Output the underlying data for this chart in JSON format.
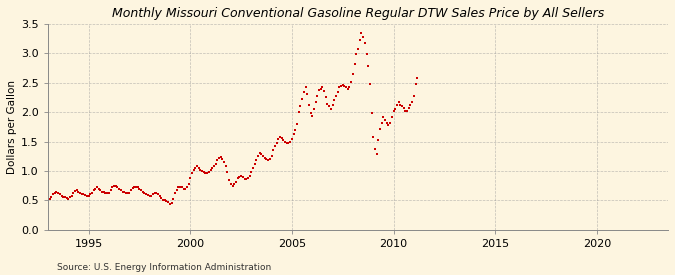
{
  "title": "Monthly Missouri Conventional Gasoline Regular DTW Sales Price by All Sellers",
  "ylabel": "Dollars per Gallon",
  "source": "Source: U.S. Energy Information Administration",
  "background_color": "#fdf5e0",
  "dot_color": "#cc0000",
  "grid_color": "#999999",
  "xlim": [
    1993.0,
    2023.5
  ],
  "ylim": [
    0.0,
    3.5
  ],
  "yticks": [
    0.0,
    0.5,
    1.0,
    1.5,
    2.0,
    2.5,
    3.0,
    3.5
  ],
  "xticks": [
    1995,
    2000,
    2005,
    2010,
    2015,
    2020
  ],
  "data": [
    [
      1993.08,
      0.52
    ],
    [
      1993.17,
      0.55
    ],
    [
      1993.25,
      0.6
    ],
    [
      1993.33,
      0.62
    ],
    [
      1993.42,
      0.65
    ],
    [
      1993.5,
      0.63
    ],
    [
      1993.58,
      0.6
    ],
    [
      1993.67,
      0.57
    ],
    [
      1993.75,
      0.56
    ],
    [
      1993.83,
      0.55
    ],
    [
      1993.92,
      0.54
    ],
    [
      1994.0,
      0.53
    ],
    [
      1994.08,
      0.55
    ],
    [
      1994.17,
      0.58
    ],
    [
      1994.25,
      0.63
    ],
    [
      1994.33,
      0.66
    ],
    [
      1994.42,
      0.67
    ],
    [
      1994.5,
      0.65
    ],
    [
      1994.58,
      0.63
    ],
    [
      1994.67,
      0.6
    ],
    [
      1994.75,
      0.6
    ],
    [
      1994.83,
      0.59
    ],
    [
      1994.92,
      0.58
    ],
    [
      1995.0,
      0.57
    ],
    [
      1995.08,
      0.6
    ],
    [
      1995.17,
      0.63
    ],
    [
      1995.25,
      0.68
    ],
    [
      1995.33,
      0.7
    ],
    [
      1995.42,
      0.72
    ],
    [
      1995.5,
      0.7
    ],
    [
      1995.58,
      0.68
    ],
    [
      1995.67,
      0.65
    ],
    [
      1995.75,
      0.64
    ],
    [
      1995.83,
      0.63
    ],
    [
      1995.92,
      0.62
    ],
    [
      1996.0,
      0.63
    ],
    [
      1996.08,
      0.68
    ],
    [
      1996.17,
      0.73
    ],
    [
      1996.25,
      0.75
    ],
    [
      1996.33,
      0.74
    ],
    [
      1996.42,
      0.72
    ],
    [
      1996.5,
      0.7
    ],
    [
      1996.58,
      0.67
    ],
    [
      1996.67,
      0.65
    ],
    [
      1996.75,
      0.64
    ],
    [
      1996.83,
      0.63
    ],
    [
      1996.92,
      0.62
    ],
    [
      1997.0,
      0.63
    ],
    [
      1997.08,
      0.67
    ],
    [
      1997.17,
      0.71
    ],
    [
      1997.25,
      0.73
    ],
    [
      1997.33,
      0.73
    ],
    [
      1997.42,
      0.72
    ],
    [
      1997.5,
      0.7
    ],
    [
      1997.58,
      0.67
    ],
    [
      1997.67,
      0.64
    ],
    [
      1997.75,
      0.63
    ],
    [
      1997.83,
      0.61
    ],
    [
      1997.92,
      0.59
    ],
    [
      1998.0,
      0.57
    ],
    [
      1998.08,
      0.58
    ],
    [
      1998.17,
      0.6
    ],
    [
      1998.25,
      0.62
    ],
    [
      1998.33,
      0.62
    ],
    [
      1998.42,
      0.6
    ],
    [
      1998.5,
      0.57
    ],
    [
      1998.58,
      0.54
    ],
    [
      1998.67,
      0.51
    ],
    [
      1998.75,
      0.5
    ],
    [
      1998.83,
      0.49
    ],
    [
      1998.92,
      0.47
    ],
    [
      1999.0,
      0.44
    ],
    [
      1999.08,
      0.46
    ],
    [
      1999.17,
      0.52
    ],
    [
      1999.25,
      0.62
    ],
    [
      1999.33,
      0.68
    ],
    [
      1999.42,
      0.72
    ],
    [
      1999.5,
      0.73
    ],
    [
      1999.58,
      0.72
    ],
    [
      1999.67,
      0.7
    ],
    [
      1999.75,
      0.7
    ],
    [
      1999.83,
      0.72
    ],
    [
      1999.92,
      0.78
    ],
    [
      2000.0,
      0.88
    ],
    [
      2000.08,
      0.96
    ],
    [
      2000.17,
      1.02
    ],
    [
      2000.25,
      1.05
    ],
    [
      2000.33,
      1.08
    ],
    [
      2000.42,
      1.05
    ],
    [
      2000.5,
      1.02
    ],
    [
      2000.58,
      1.0
    ],
    [
      2000.67,
      0.99
    ],
    [
      2000.75,
      0.97
    ],
    [
      2000.83,
      0.96
    ],
    [
      2000.92,
      0.98
    ],
    [
      2001.0,
      1.02
    ],
    [
      2001.08,
      1.05
    ],
    [
      2001.17,
      1.08
    ],
    [
      2001.25,
      1.12
    ],
    [
      2001.33,
      1.18
    ],
    [
      2001.42,
      1.22
    ],
    [
      2001.5,
      1.24
    ],
    [
      2001.58,
      1.2
    ],
    [
      2001.67,
      1.15
    ],
    [
      2001.75,
      1.08
    ],
    [
      2001.83,
      0.98
    ],
    [
      2001.92,
      0.85
    ],
    [
      2002.0,
      0.78
    ],
    [
      2002.08,
      0.75
    ],
    [
      2002.17,
      0.78
    ],
    [
      2002.25,
      0.82
    ],
    [
      2002.33,
      0.88
    ],
    [
      2002.42,
      0.9
    ],
    [
      2002.5,
      0.92
    ],
    [
      2002.58,
      0.9
    ],
    [
      2002.67,
      0.87
    ],
    [
      2002.75,
      0.86
    ],
    [
      2002.83,
      0.88
    ],
    [
      2002.92,
      0.92
    ],
    [
      2003.0,
      0.98
    ],
    [
      2003.08,
      1.05
    ],
    [
      2003.17,
      1.12
    ],
    [
      2003.25,
      1.18
    ],
    [
      2003.33,
      1.25
    ],
    [
      2003.42,
      1.3
    ],
    [
      2003.5,
      1.28
    ],
    [
      2003.58,
      1.25
    ],
    [
      2003.67,
      1.22
    ],
    [
      2003.75,
      1.2
    ],
    [
      2003.83,
      1.18
    ],
    [
      2003.92,
      1.2
    ],
    [
      2004.0,
      1.25
    ],
    [
      2004.08,
      1.35
    ],
    [
      2004.17,
      1.42
    ],
    [
      2004.25,
      1.48
    ],
    [
      2004.33,
      1.55
    ],
    [
      2004.42,
      1.58
    ],
    [
      2004.5,
      1.56
    ],
    [
      2004.58,
      1.52
    ],
    [
      2004.67,
      1.5
    ],
    [
      2004.75,
      1.48
    ],
    [
      2004.83,
      1.47
    ],
    [
      2004.92,
      1.49
    ],
    [
      2005.0,
      1.55
    ],
    [
      2005.08,
      1.62
    ],
    [
      2005.17,
      1.7
    ],
    [
      2005.25,
      1.8
    ],
    [
      2005.33,
      2.0
    ],
    [
      2005.42,
      2.1
    ],
    [
      2005.5,
      2.22
    ],
    [
      2005.58,
      2.35
    ],
    [
      2005.67,
      2.42
    ],
    [
      2005.75,
      2.3
    ],
    [
      2005.83,
      2.12
    ],
    [
      2005.92,
      1.98
    ],
    [
      2006.0,
      1.93
    ],
    [
      2006.08,
      2.05
    ],
    [
      2006.17,
      2.18
    ],
    [
      2006.25,
      2.28
    ],
    [
      2006.33,
      2.38
    ],
    [
      2006.42,
      2.4
    ],
    [
      2006.5,
      2.42
    ],
    [
      2006.58,
      2.36
    ],
    [
      2006.67,
      2.25
    ],
    [
      2006.75,
      2.14
    ],
    [
      2006.83,
      2.1
    ],
    [
      2006.92,
      2.05
    ],
    [
      2007.0,
      2.12
    ],
    [
      2007.08,
      2.2
    ],
    [
      2007.17,
      2.28
    ],
    [
      2007.25,
      2.35
    ],
    [
      2007.33,
      2.42
    ],
    [
      2007.42,
      2.44
    ],
    [
      2007.5,
      2.46
    ],
    [
      2007.58,
      2.44
    ],
    [
      2007.67,
      2.42
    ],
    [
      2007.75,
      2.4
    ],
    [
      2007.83,
      2.42
    ],
    [
      2007.92,
      2.52
    ],
    [
      2008.0,
      2.65
    ],
    [
      2008.08,
      2.82
    ],
    [
      2008.17,
      2.98
    ],
    [
      2008.25,
      3.08
    ],
    [
      2008.33,
      3.22
    ],
    [
      2008.42,
      3.35
    ],
    [
      2008.5,
      3.28
    ],
    [
      2008.58,
      3.18
    ],
    [
      2008.67,
      2.98
    ],
    [
      2008.75,
      2.78
    ],
    [
      2008.83,
      2.48
    ],
    [
      2008.92,
      1.98
    ],
    [
      2009.0,
      1.58
    ],
    [
      2009.08,
      1.38
    ],
    [
      2009.17,
      1.28
    ],
    [
      2009.25,
      1.52
    ],
    [
      2009.33,
      1.72
    ],
    [
      2009.42,
      1.82
    ],
    [
      2009.5,
      1.92
    ],
    [
      2009.58,
      1.87
    ],
    [
      2009.67,
      1.82
    ],
    [
      2009.75,
      1.78
    ],
    [
      2009.83,
      1.82
    ],
    [
      2009.92,
      1.92
    ],
    [
      2010.0,
      2.02
    ],
    [
      2010.08,
      2.06
    ],
    [
      2010.17,
      2.12
    ],
    [
      2010.25,
      2.17
    ],
    [
      2010.33,
      2.12
    ],
    [
      2010.42,
      2.1
    ],
    [
      2010.5,
      2.07
    ],
    [
      2010.58,
      2.02
    ],
    [
      2010.67,
      2.02
    ],
    [
      2010.75,
      2.07
    ],
    [
      2010.83,
      2.12
    ],
    [
      2010.92,
      2.17
    ],
    [
      2011.0,
      2.28
    ],
    [
      2011.08,
      2.48
    ],
    [
      2011.17,
      2.58
    ]
  ]
}
